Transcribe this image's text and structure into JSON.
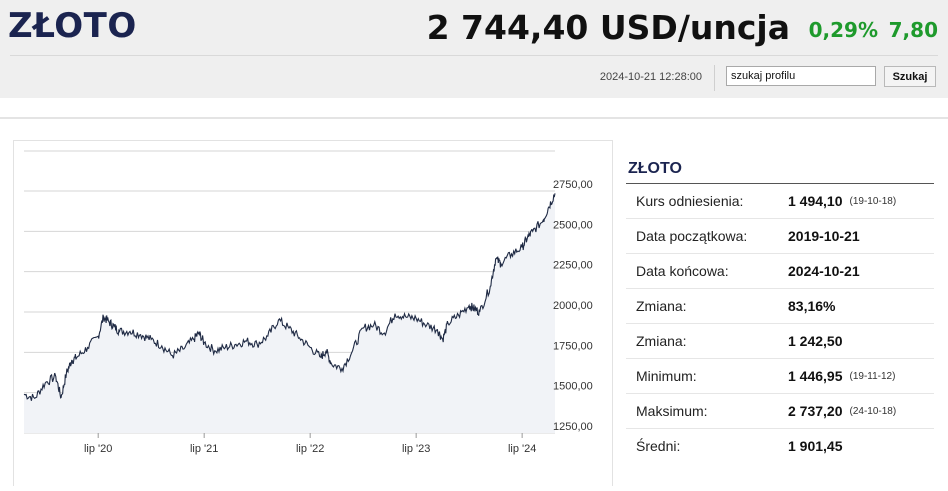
{
  "header": {
    "title": "ZŁOTO",
    "price": "2 744,40 USD/uncja",
    "change_pct": "0,29%",
    "change_abs": "7,80",
    "timestamp": "2024-10-21 12:28:00",
    "search_value": "szukaj profilu",
    "search_button": "Szukaj"
  },
  "colors": {
    "title": "#1b2450",
    "positive": "#1e9a2c",
    "line": "#1f2a44",
    "area": "#f1f3f7"
  },
  "info": {
    "title": "ZŁOTO",
    "rows": [
      {
        "label": "Kurs odniesienia:",
        "value": "1 494,10",
        "sub": "(19-10-18)"
      },
      {
        "label": "Data początkowa:",
        "value": "2019-10-21",
        "sub": ""
      },
      {
        "label": "Data końcowa:",
        "value": "2024-10-21",
        "sub": ""
      },
      {
        "label": "Zmiana:",
        "value": "83,16%",
        "sub": ""
      },
      {
        "label": "Zmiana:",
        "value": "1 242,50",
        "sub": ""
      },
      {
        "label": "Minimum:",
        "value": "1 446,95",
        "sub": "(19-11-12)"
      },
      {
        "label": "Maksimum:",
        "value": "2 737,20",
        "sub": "(24-10-18)"
      },
      {
        "label": "Średni:",
        "value": "1 901,45",
        "sub": ""
      }
    ]
  },
  "chart_data": {
    "type": "line",
    "x_tick_labels": [
      "lip '20",
      "lip '21",
      "lip '22",
      "lip '23",
      "lip '24"
    ],
    "x_tick_dates": [
      2020.5,
      2021.5,
      2022.5,
      2023.5,
      2024.5
    ],
    "y_tick_labels": [
      "2750,00",
      "2500,00",
      "2250,00",
      "2000,00",
      "1750,00",
      "1500,00",
      "1250,00"
    ],
    "y_ticks": [
      2750,
      2500,
      2250,
      2000,
      1750,
      1500,
      1250
    ],
    "xlim": [
      2019.8,
      2024.81
    ],
    "ylim": [
      1250,
      2750
    ],
    "grid": true,
    "x": [
      2019.8,
      2019.9,
      2020.0,
      2020.1,
      2020.15,
      2020.2,
      2020.25,
      2020.3,
      2020.4,
      2020.5,
      2020.55,
      2020.6,
      2020.65,
      2020.7,
      2020.8,
      2020.9,
      2021.0,
      2021.1,
      2021.2,
      2021.3,
      2021.4,
      2021.45,
      2021.5,
      2021.6,
      2021.7,
      2021.8,
      2021.9,
      2022.0,
      2022.1,
      2022.2,
      2022.3,
      2022.4,
      2022.5,
      2022.6,
      2022.65,
      2022.7,
      2022.8,
      2022.9,
      2023.0,
      2023.1,
      2023.2,
      2023.3,
      2023.4,
      2023.5,
      2023.6,
      2023.7,
      2023.75,
      2023.8,
      2023.9,
      2024.0,
      2024.05,
      2024.1,
      2024.2,
      2024.25,
      2024.3,
      2024.4,
      2024.5,
      2024.55,
      2024.6,
      2024.7,
      2024.75,
      2024.81
    ],
    "y": [
      1490,
      1465,
      1560,
      1600,
      1470,
      1620,
      1700,
      1720,
      1780,
      1850,
      1970,
      1940,
      1910,
      1880,
      1880,
      1860,
      1830,
      1790,
      1730,
      1770,
      1830,
      1870,
      1810,
      1760,
      1780,
      1800,
      1820,
      1800,
      1850,
      1950,
      1900,
      1840,
      1780,
      1720,
      1760,
      1680,
      1650,
      1760,
      1900,
      1920,
      1870,
      1990,
      1970,
      1960,
      1920,
      1890,
      1830,
      1930,
      1980,
      2040,
      2020,
      2000,
      2160,
      2330,
      2300,
      2360,
      2400,
      2460,
      2500,
      2570,
      2650,
      2735
    ]
  }
}
